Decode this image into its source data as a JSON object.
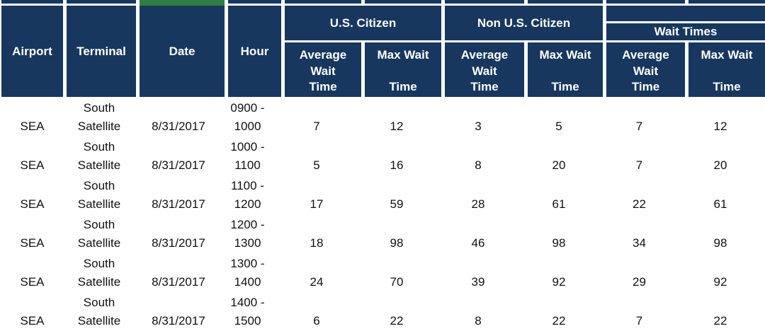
{
  "colors": {
    "header_bg": "#17375E",
    "header_text": "#FFFFFF",
    "accent_strip_green": "#2F7E45",
    "body_text": "#111111"
  },
  "header": {
    "simple_columns": [
      "Airport",
      "Terminal",
      "Date",
      "Hour"
    ],
    "groups": [
      {
        "label": "U.S. Citizen"
      },
      {
        "label": "Non U.S. Citizen"
      },
      {
        "label": "Wait Times"
      }
    ],
    "subheader_lines": {
      "average": [
        "Average",
        "Wait",
        "Time"
      ],
      "max": [
        "Max Wait",
        "Time"
      ]
    }
  },
  "rows": [
    {
      "airport": "SEA",
      "terminal": "South Satellite",
      "date": "8/31/2017",
      "hour": "0900 - 1000",
      "us_avg": "7",
      "us_max": "12",
      "non_avg": "3",
      "non_max": "5",
      "wt_avg": "7",
      "wt_max": "12"
    },
    {
      "airport": "SEA",
      "terminal": "South Satellite",
      "date": "8/31/2017",
      "hour": "1000 - 1100",
      "us_avg": "5",
      "us_max": "16",
      "non_avg": "8",
      "non_max": "20",
      "wt_avg": "7",
      "wt_max": "20"
    },
    {
      "airport": "SEA",
      "terminal": "South Satellite",
      "date": "8/31/2017",
      "hour": "1100 - 1200",
      "us_avg": "17",
      "us_max": "59",
      "non_avg": "28",
      "non_max": "61",
      "wt_avg": "22",
      "wt_max": "61"
    },
    {
      "airport": "SEA",
      "terminal": "South Satellite",
      "date": "8/31/2017",
      "hour": "1200 - 1300",
      "us_avg": "18",
      "us_max": "98",
      "non_avg": "46",
      "non_max": "98",
      "wt_avg": "34",
      "wt_max": "98"
    },
    {
      "airport": "SEA",
      "terminal": "South Satellite",
      "date": "8/31/2017",
      "hour": "1300 - 1400",
      "us_avg": "24",
      "us_max": "70",
      "non_avg": "39",
      "non_max": "92",
      "wt_avg": "29",
      "wt_max": "92"
    },
    {
      "airport": "SEA",
      "terminal": "South Satellite",
      "date": "8/31/2017",
      "hour": "1400 - 1500",
      "us_avg": "6",
      "us_max": "22",
      "non_avg": "8",
      "non_max": "22",
      "wt_avg": "7",
      "wt_max": "22"
    }
  ]
}
